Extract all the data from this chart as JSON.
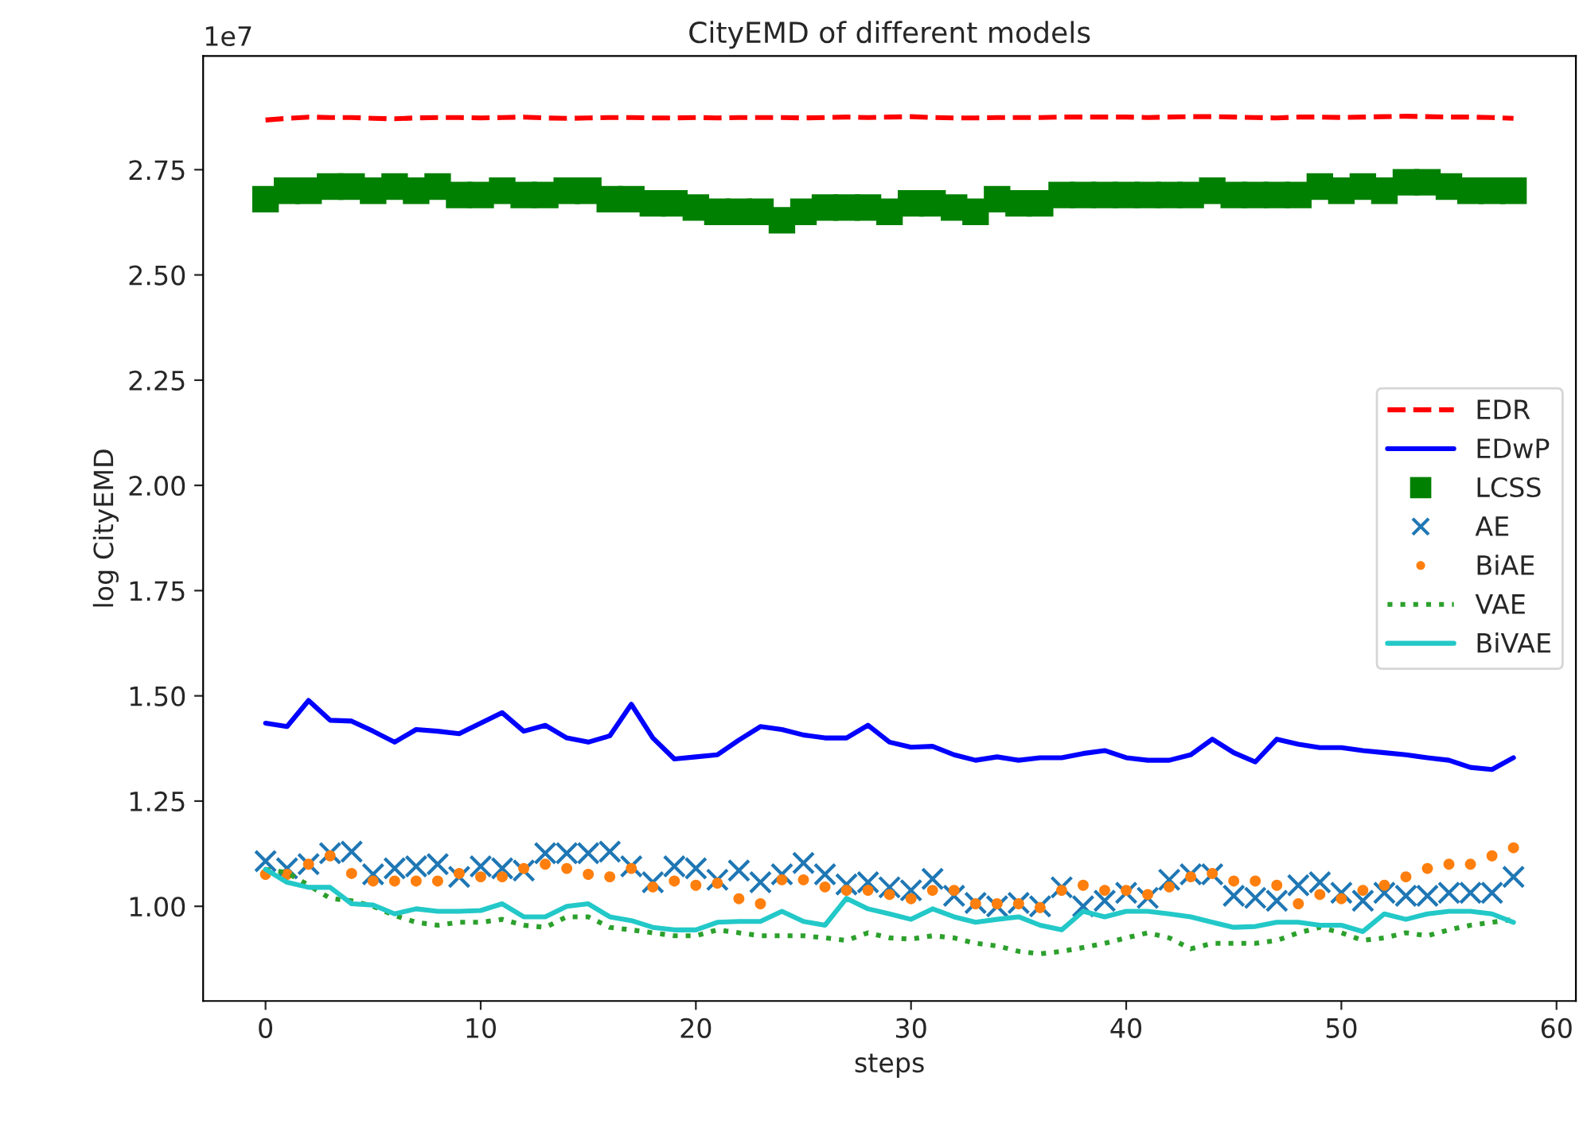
{
  "chart_data": {
    "type": "line",
    "title": "CityEMD of different models",
    "xlabel": "steps",
    "ylabel": "log CityEMD",
    "annotations": [
      "1e7"
    ],
    "x": [
      0,
      1,
      2,
      3,
      4,
      5,
      6,
      7,
      8,
      9,
      10,
      11,
      12,
      13,
      14,
      15,
      16,
      17,
      18,
      19,
      20,
      21,
      22,
      23,
      24,
      25,
      26,
      27,
      28,
      29,
      30,
      31,
      32,
      33,
      34,
      35,
      36,
      37,
      38,
      39,
      40,
      41,
      42,
      43,
      44,
      45,
      46,
      47,
      48,
      49,
      50,
      51,
      52,
      53,
      54,
      55,
      56,
      57,
      58
    ],
    "xlim": [
      -2.9,
      60.9
    ],
    "xticks": [
      0,
      10,
      20,
      30,
      40,
      50,
      60
    ],
    "ylim": [
      0.775,
      3.02
    ],
    "yticks": [
      {
        "value": 1.0,
        "label": "1.00"
      },
      {
        "value": 1.25,
        "label": "1.25"
      },
      {
        "value": 1.5,
        "label": "1.50"
      },
      {
        "value": 1.75,
        "label": "1.75"
      },
      {
        "value": 2.0,
        "label": "2.00"
      },
      {
        "value": 2.25,
        "label": "2.25"
      },
      {
        "value": 2.5,
        "label": "2.50"
      },
      {
        "value": 2.75,
        "label": "2.75"
      }
    ],
    "legend": "right",
    "grid": false,
    "series": [
      {
        "name": "EDR",
        "color": "#ff0000",
        "line_style": "dashed",
        "marker": "none",
        "values": [
          2.868,
          2.872,
          2.875,
          2.874,
          2.874,
          2.872,
          2.871,
          2.873,
          2.874,
          2.874,
          2.873,
          2.874,
          2.875,
          2.873,
          2.872,
          2.873,
          2.874,
          2.874,
          2.873,
          2.873,
          2.874,
          2.873,
          2.874,
          2.874,
          2.874,
          2.873,
          2.874,
          2.875,
          2.874,
          2.875,
          2.876,
          2.874,
          2.873,
          2.873,
          2.874,
          2.874,
          2.874,
          2.875,
          2.875,
          2.875,
          2.875,
          2.874,
          2.875,
          2.876,
          2.876,
          2.875,
          2.874,
          2.873,
          2.875,
          2.875,
          2.874,
          2.875,
          2.876,
          2.877,
          2.876,
          2.875,
          2.875,
          2.874,
          2.872
        ]
      },
      {
        "name": "EDwP",
        "color": "#0000ff",
        "line_style": "solid",
        "marker": "none",
        "values": [
          1.435,
          1.427,
          1.489,
          1.442,
          1.44,
          1.416,
          1.39,
          1.42,
          1.416,
          1.41,
          1.435,
          1.46,
          1.416,
          1.43,
          1.4,
          1.39,
          1.405,
          1.48,
          1.4,
          1.35,
          1.355,
          1.36,
          1.395,
          1.427,
          1.42,
          1.407,
          1.4,
          1.4,
          1.43,
          1.39,
          1.378,
          1.38,
          1.36,
          1.347,
          1.355,
          1.347,
          1.353,
          1.353,
          1.363,
          1.37,
          1.353,
          1.347,
          1.347,
          1.36,
          1.397,
          1.365,
          1.343,
          1.397,
          1.385,
          1.377,
          1.377,
          1.37,
          1.365,
          1.36,
          1.353,
          1.347,
          1.33,
          1.325,
          1.353
        ]
      },
      {
        "name": "LCSS",
        "type": "scatter",
        "color": "#008000",
        "marker": "square",
        "values": [
          2.68,
          2.7,
          2.7,
          2.71,
          2.71,
          2.7,
          2.71,
          2.7,
          2.71,
          2.69,
          2.69,
          2.7,
          2.69,
          2.69,
          2.7,
          2.7,
          2.68,
          2.68,
          2.67,
          2.67,
          2.66,
          2.65,
          2.65,
          2.65,
          2.63,
          2.65,
          2.66,
          2.66,
          2.66,
          2.65,
          2.67,
          2.67,
          2.66,
          2.65,
          2.68,
          2.67,
          2.67,
          2.69,
          2.69,
          2.69,
          2.69,
          2.69,
          2.69,
          2.69,
          2.7,
          2.69,
          2.69,
          2.69,
          2.69,
          2.71,
          2.7,
          2.71,
          2.7,
          2.72,
          2.72,
          2.71,
          2.7,
          2.7,
          2.7
        ]
      },
      {
        "name": "AE",
        "type": "scatter",
        "color": "#1f77b4",
        "marker": "cross",
        "values": [
          1.107,
          1.09,
          1.1,
          1.126,
          1.13,
          1.076,
          1.09,
          1.095,
          1.1,
          1.07,
          1.095,
          1.09,
          1.085,
          1.126,
          1.126,
          1.126,
          1.13,
          1.095,
          1.057,
          1.095,
          1.09,
          1.063,
          1.085,
          1.057,
          1.076,
          1.103,
          1.076,
          1.052,
          1.057,
          1.045,
          1.038,
          1.065,
          1.025,
          1.008,
          1.0,
          1.008,
          1.0,
          1.045,
          1.0,
          1.013,
          1.032,
          1.02,
          1.063,
          1.076,
          1.076,
          1.025,
          1.02,
          1.013,
          1.05,
          1.057,
          1.032,
          1.013,
          1.032,
          1.025,
          1.025,
          1.032,
          1.032,
          1.032,
          1.07
        ]
      },
      {
        "name": "BiAE",
        "type": "scatter",
        "color": "#ff7f0e",
        "marker": "circle",
        "values": [
          1.076,
          1.076,
          1.1,
          1.12,
          1.078,
          1.06,
          1.06,
          1.06,
          1.06,
          1.078,
          1.07,
          1.07,
          1.09,
          1.1,
          1.09,
          1.076,
          1.07,
          1.09,
          1.046,
          1.06,
          1.05,
          1.055,
          1.018,
          1.006,
          1.063,
          1.063,
          1.046,
          1.038,
          1.038,
          1.028,
          1.018,
          1.038,
          1.038,
          1.006,
          1.006,
          1.006,
          0.997,
          1.038,
          1.05,
          1.038,
          1.038,
          1.028,
          1.046,
          1.07,
          1.078,
          1.06,
          1.06,
          1.05,
          1.006,
          1.028,
          1.018,
          1.038,
          1.05,
          1.07,
          1.09,
          1.1,
          1.1,
          1.12,
          1.139
        ]
      },
      {
        "name": "VAE",
        "color": "#2ca02c",
        "line_style": "dotted",
        "marker": "none",
        "values": [
          1.088,
          1.08,
          1.05,
          1.019,
          1.013,
          1.0,
          0.978,
          0.962,
          0.955,
          0.962,
          0.962,
          0.969,
          0.955,
          0.95,
          0.975,
          0.975,
          0.95,
          0.944,
          0.937,
          0.93,
          0.93,
          0.944,
          0.937,
          0.93,
          0.93,
          0.93,
          0.925,
          0.919,
          0.937,
          0.925,
          0.922,
          0.93,
          0.925,
          0.912,
          0.906,
          0.893,
          0.887,
          0.893,
          0.902,
          0.912,
          0.925,
          0.937,
          0.925,
          0.899,
          0.912,
          0.912,
          0.912,
          0.919,
          0.937,
          0.95,
          0.937,
          0.919,
          0.925,
          0.937,
          0.93,
          0.944,
          0.955,
          0.962,
          0.969
        ]
      },
      {
        "name": "BiVAE",
        "color": "#23c8c8",
        "line_style": "solid",
        "marker": "none",
        "values": [
          1.088,
          1.057,
          1.045,
          1.045,
          1.006,
          1.003,
          0.982,
          0.994,
          0.988,
          0.988,
          0.99,
          1.006,
          0.975,
          0.975,
          1.0,
          1.006,
          0.975,
          0.966,
          0.95,
          0.944,
          0.944,
          0.962,
          0.964,
          0.964,
          0.988,
          0.964,
          0.955,
          1.019,
          0.994,
          0.982,
          0.969,
          0.994,
          0.975,
          0.962,
          0.969,
          0.975,
          0.955,
          0.944,
          0.988,
          0.975,
          0.988,
          0.988,
          0.982,
          0.975,
          0.962,
          0.95,
          0.952,
          0.962,
          0.962,
          0.955,
          0.955,
          0.94,
          0.982,
          0.969,
          0.982,
          0.988,
          0.988,
          0.982,
          0.962
        ]
      }
    ]
  }
}
